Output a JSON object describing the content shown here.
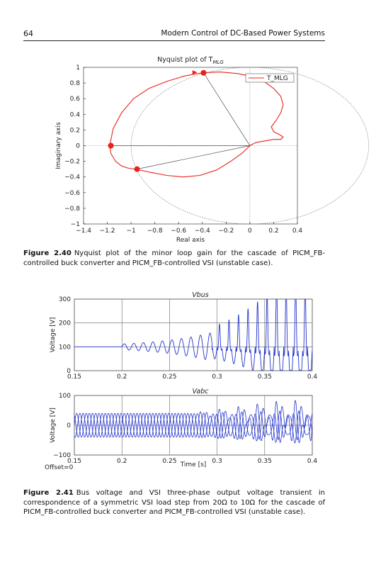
{
  "header": {
    "page_number": "64",
    "running_title": "Modern Control of DC-Based Power Systems"
  },
  "figure_2_40": {
    "caption_label": "Figure 2.40",
    "caption_text": "Nyquist plot of the minor loop gain for the cascade of PICM_FB-controlled buck converter and PICM_FB-controlled VSI (unstable case).",
    "chart_data": {
      "type": "line",
      "title": "Nyquist plot of T",
      "title_subscript": "MLG",
      "xlabel": "Real axis",
      "ylabel": "Imaginary axis",
      "xlim": [
        -1.4,
        0.4
      ],
      "ylim": [
        -1,
        1
      ],
      "xticks": [
        "−1.4",
        "−1.2",
        "−1",
        "−0.8",
        "−0.6",
        "−0.4",
        "−0.2",
        "0",
        "0.2",
        "0.4"
      ],
      "yticks": [
        "1",
        "0.8",
        "0.6",
        "0.4",
        "0.2",
        "0",
        "−0.2",
        "−0.4",
        "−0.6",
        "−0.8",
        "−1"
      ],
      "legend": {
        "entries": [
          "T_MLG"
        ],
        "placement": "top-right"
      },
      "series": [
        {
          "name": "T_MLG",
          "color": "#e8211d",
          "x": [
            0,
            0.05,
            0.12,
            0.2,
            0.26,
            0.28,
            0.25,
            0.2,
            0.18,
            0.22,
            0.26,
            0.28,
            0.26,
            0.2,
            0.12,
            0.02,
            -0.1,
            -0.25,
            -0.4,
            -0.55,
            -0.7,
            -0.85,
            -0.98,
            -1.08,
            -1.15,
            -1.18,
            -1.17,
            -1.13,
            -1.08,
            -1.02,
            -0.96,
            -0.84,
            -0.7,
            -0.56,
            -0.42,
            -0.28,
            -0.16,
            -0.06,
            0
          ],
          "y": [
            0,
            0.04,
            0.06,
            0.08,
            0.08,
            0.11,
            0.14,
            0.18,
            0.24,
            0.32,
            0.42,
            0.52,
            0.63,
            0.73,
            0.82,
            0.88,
            0.92,
            0.94,
            0.93,
            0.89,
            0.82,
            0.73,
            0.6,
            0.42,
            0.22,
            0,
            -0.1,
            -0.2,
            -0.26,
            -0.29,
            -0.3,
            -0.34,
            -0.38,
            -0.4,
            -0.38,
            -0.31,
            -0.2,
            -0.09,
            0
          ]
        }
      ],
      "markers": [
        {
          "x": -0.39,
          "y": 0.93
        },
        {
          "x": -1.17,
          "y": 0
        },
        {
          "x": -0.95,
          "y": -0.3
        }
      ],
      "unit_circle": {
        "center": [
          0,
          0
        ],
        "radius": 1
      },
      "grid": false
    }
  },
  "figure_2_41": {
    "caption_label": "Figure 2.41",
    "caption_text": "Bus voltage and VSI three-phase output voltage transient in correspondence of a symmetric VSI load step from 20Ω to 10Ω for the cascade of PICM_FB-controlled buck converter and PICM_FB-controlled VSI (unstable case).",
    "offset_label": "Offset=0",
    "xlabel": "Time [s]",
    "chart_data": [
      {
        "type": "line",
        "title": "Vbus",
        "ylabel": "Voltage [V]",
        "xlim": [
          0.15,
          0.4
        ],
        "ylim": [
          0,
          300
        ],
        "xticks": [
          "0.15",
          "0.2",
          "0.25",
          "0.3",
          "0.35",
          "0.4"
        ],
        "yticks": [
          "300",
          "200",
          "100",
          "0"
        ],
        "grid": true,
        "series": [
          {
            "color": "#2233cc",
            "x": [
              0.15,
              0.2,
              0.21,
              0.22,
              0.23,
              0.24,
              0.25,
              0.26,
              0.27,
              0.28,
              0.29,
              0.3,
              0.31,
              0.32,
              0.33,
              0.34,
              0.35,
              0.36,
              0.37,
              0.38,
              0.39,
              0.4
            ],
            "y": [
              100,
              100,
              110,
              117,
              122,
              130,
              140,
              155,
              170,
              180,
              190,
              230,
              270,
              270,
              290,
              282,
              290,
              280,
              285,
              280,
              275,
              240
            ]
          }
        ]
      },
      {
        "type": "line",
        "title": "Vabc",
        "ylabel": "Voltage [V]",
        "xlim": [
          0.15,
          0.4
        ],
        "ylim": [
          -100,
          100
        ],
        "xticks": [
          "0.15",
          "0.2",
          "0.25",
          "0.3",
          "0.35",
          "0.4"
        ],
        "yticks": [
          "100",
          "0",
          "−100"
        ],
        "grid": true,
        "series": [
          {
            "color": "#2233cc",
            "x": [
              0.15,
              0.28,
              0.3,
              0.33,
              0.36,
              0.38,
              0.4
            ],
            "y": [
              40,
              40,
              60,
              75,
              85,
              90,
              95
            ]
          }
        ]
      }
    ]
  }
}
